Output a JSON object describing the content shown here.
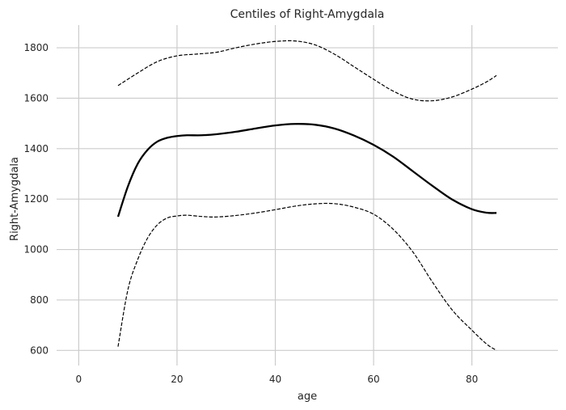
{
  "chart_data": {
    "type": "line",
    "title": "Centiles of Right-Amygdala",
    "xlabel": "age",
    "ylabel": "Right-Amygdala",
    "xlim": [
      -4.5,
      97.5
    ],
    "ylim": [
      540,
      1890
    ],
    "x_ticks": [
      0,
      20,
      40,
      60,
      80
    ],
    "y_ticks": [
      600,
      800,
      1000,
      1200,
      1400,
      1600,
      1800
    ],
    "grid": true,
    "series": [
      {
        "style": "solid",
        "color": "#000000",
        "x": [
          8,
          10,
          12,
          14,
          16,
          18,
          20,
          22,
          25,
          28,
          32,
          36,
          40,
          44,
          48,
          52,
          56,
          60,
          64,
          68,
          72,
          76,
          80,
          83,
          85
        ],
        "y": [
          1130,
          1250,
          1340,
          1395,
          1428,
          1443,
          1450,
          1453,
          1453,
          1457,
          1467,
          1480,
          1492,
          1498,
          1495,
          1480,
          1452,
          1415,
          1368,
          1310,
          1252,
          1198,
          1160,
          1146,
          1145
        ]
      },
      {
        "style": "dashed",
        "color": "#000000",
        "x": [
          8,
          12,
          16,
          20,
          24,
          28,
          32,
          36,
          40,
          44,
          48,
          52,
          56,
          60,
          64,
          68,
          72,
          76,
          80,
          83,
          85
        ],
        "y": [
          1650,
          1700,
          1745,
          1768,
          1775,
          1782,
          1800,
          1815,
          1825,
          1827,
          1812,
          1775,
          1725,
          1675,
          1628,
          1596,
          1590,
          1605,
          1636,
          1665,
          1690
        ]
      },
      {
        "style": "dashed",
        "color": "#000000",
        "x": [
          8,
          10,
          12,
          14,
          16,
          18,
          20,
          22,
          25,
          28,
          32,
          36,
          40,
          44,
          48,
          52,
          56,
          60,
          64,
          68,
          72,
          76,
          80,
          83,
          85
        ],
        "y": [
          615,
          840,
          960,
          1045,
          1098,
          1125,
          1133,
          1136,
          1131,
          1129,
          1135,
          1145,
          1158,
          1172,
          1181,
          1182,
          1168,
          1140,
          1080,
          990,
          870,
          760,
          680,
          625,
          600
        ]
      }
    ]
  }
}
